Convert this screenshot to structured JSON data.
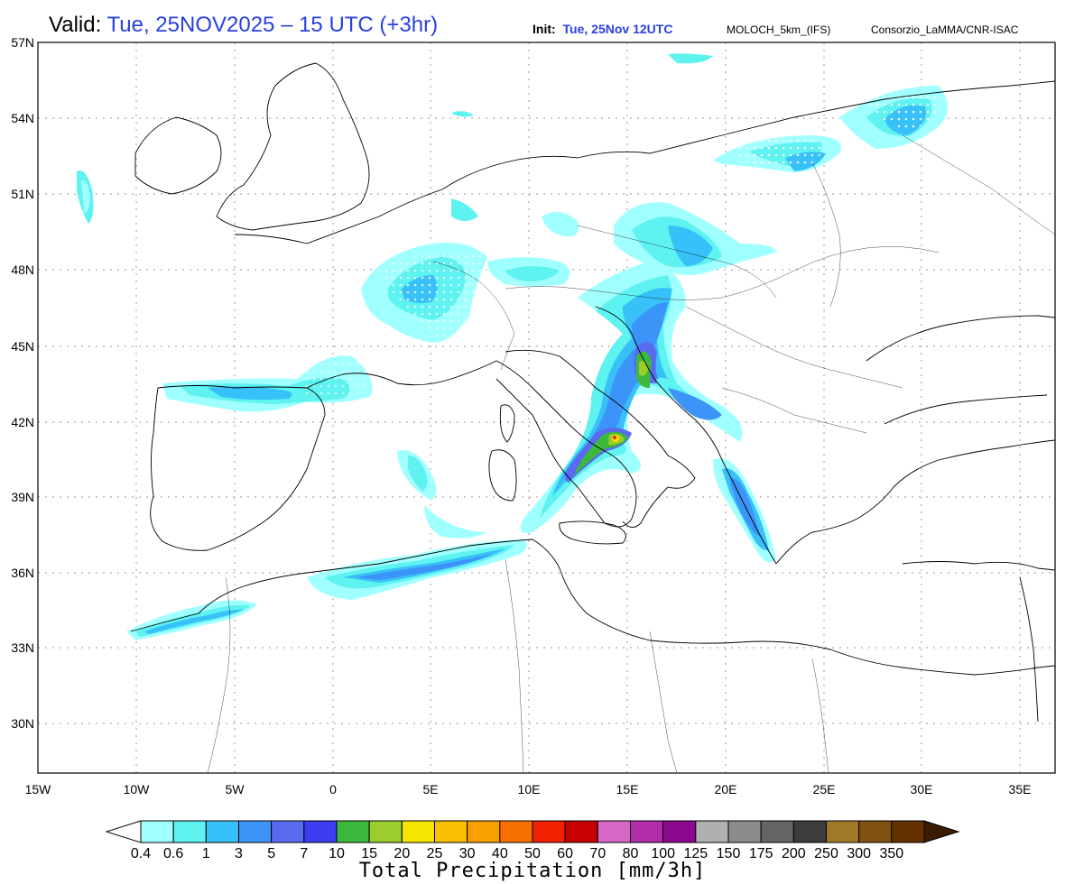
{
  "header": {
    "valid_label": "Valid:",
    "valid_value": "Tue, 25NOV2025 – 15 UTC (+3hr)",
    "init_label": "Init:",
    "init_value": "Tue, 25Nov 12UTC",
    "model": "MOLOCH_5km_(IFS)",
    "credit": "Consorzio_LaMMA/CNR-ISAC"
  },
  "axes": {
    "lat_labels": [
      "57N",
      "54N",
      "51N",
      "48N",
      "45N",
      "42N",
      "39N",
      "36N",
      "33N",
      "30N"
    ],
    "lon_labels": [
      "15W",
      "10W",
      "5W",
      "0",
      "5E",
      "10E",
      "15E",
      "20E",
      "25E",
      "30E",
      "35E"
    ]
  },
  "colorbar": {
    "title": "Total Precipitation [mm/3h]",
    "ticks": [
      "0.4",
      "0.6",
      "1",
      "3",
      "5",
      "7",
      "10",
      "15",
      "20",
      "25",
      "30",
      "40",
      "50",
      "60",
      "70",
      "80",
      "100",
      "125",
      "150",
      "175",
      "200",
      "250",
      "300",
      "350"
    ],
    "colors": [
      "#a0ffff",
      "#5ef2f0",
      "#38c0f8",
      "#3c94f8",
      "#5a6af0",
      "#3c3cf0",
      "#3cb83c",
      "#9ccd2c",
      "#f4e600",
      "#f8c000",
      "#f8a000",
      "#f87000",
      "#f02000",
      "#c80000",
      "#d868c8",
      "#b02ca8",
      "#8c0890",
      "#b0b0b0",
      "#8c8c8c",
      "#646464",
      "#3c3c3c",
      "#a07828",
      "#805010",
      "#643200",
      "#3c1c00"
    ]
  },
  "map_colors": {
    "land_line": "#000000",
    "grid": "#aaaaaa",
    "precip_light": "#a0ffff",
    "precip_cyan": "#5ef2f0",
    "precip_sky": "#38c0f8",
    "precip_blue": "#3c94f8",
    "precip_indigo": "#5a6af0",
    "precip_green": "#3cb83c",
    "precip_yellowgreen": "#9ccd2c",
    "precip_yellow": "#f4e600",
    "precip_red": "#f02000"
  }
}
